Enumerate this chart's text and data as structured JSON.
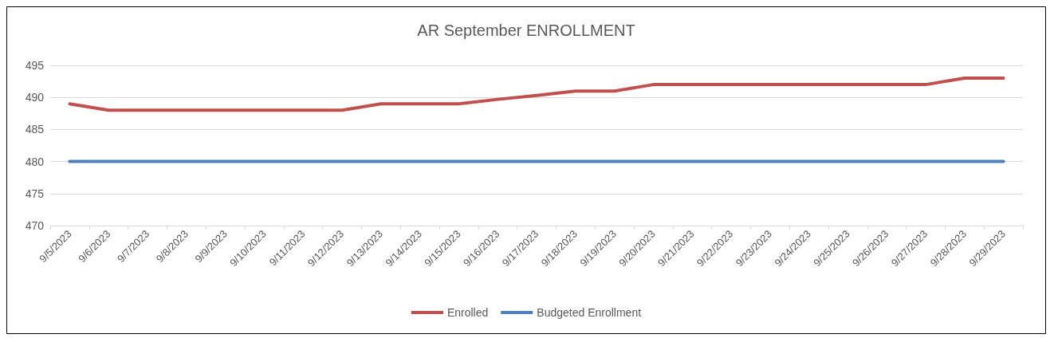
{
  "chart_data": {
    "type": "line",
    "title": "AR September ENROLLMENT",
    "categories": [
      "9/5/2023",
      "9/6/2023",
      "9/7/2023",
      "9/8/2023",
      "9/9/2023",
      "9/10/2023",
      "9/11/2023",
      "9/12/2023",
      "9/13/2023",
      "9/14/2023",
      "9/15/2023",
      "9/16/2023",
      "9/17/2023",
      "9/18/2023",
      "9/19/2023",
      "9/20/2023",
      "9/21/2023",
      "9/22/2023",
      "9/23/2023",
      "9/24/2023",
      "9/25/2023",
      "9/26/2023",
      "9/27/2023",
      "9/28/2023",
      "9/29/2023"
    ],
    "series": [
      {
        "name": "Enrolled",
        "color": "#c0504d",
        "values": [
          489,
          488,
          488,
          488,
          488,
          488,
          488,
          488,
          489,
          489,
          489,
          489.7,
          490.3,
          491,
          491,
          492,
          492,
          492,
          492,
          492,
          492,
          492,
          492,
          493,
          493
        ]
      },
      {
        "name": "Budgeted Enrollment",
        "color": "#4f81bd",
        "values": [
          480,
          480,
          480,
          480,
          480,
          480,
          480,
          480,
          480,
          480,
          480,
          480,
          480,
          480,
          480,
          480,
          480,
          480,
          480,
          480,
          480,
          480,
          480,
          480,
          480
        ]
      }
    ],
    "ylim": [
      470,
      495
    ],
    "yticks": [
      470,
      475,
      480,
      485,
      490,
      495
    ],
    "grid": "y",
    "legend": "bottom",
    "marker": "none",
    "line_style": "solid"
  }
}
